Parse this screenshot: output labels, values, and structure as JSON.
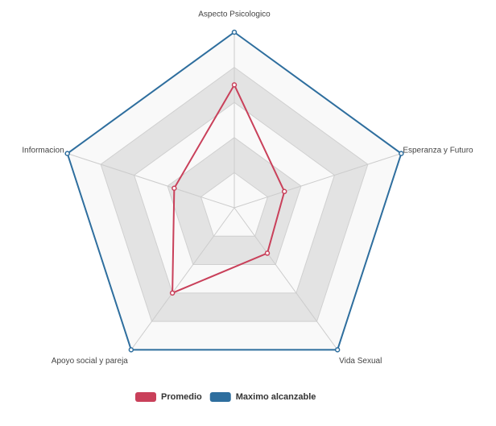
{
  "chart_data": {
    "type": "radar",
    "categories": [
      "Aspecto Psicologico",
      "Esperanza y Futuro",
      "Vida Sexual",
      "Apoyo social y pareja",
      "Informacion"
    ],
    "series": [
      {
        "name": "Promedio",
        "color": "#c9405a",
        "values": [
          3.5,
          1.5,
          1.6,
          3.0,
          1.8
        ]
      },
      {
        "name": "Maximo alcanzable",
        "color": "#2e6e9e",
        "values": [
          5,
          5,
          5,
          5,
          5
        ]
      }
    ],
    "rlim": [
      0,
      5
    ],
    "rticks": [
      1,
      2,
      3,
      4,
      5
    ],
    "grid": true,
    "legend": "bottom"
  }
}
